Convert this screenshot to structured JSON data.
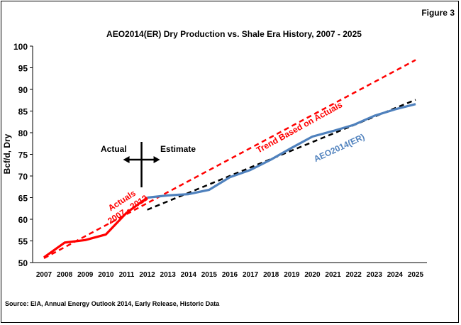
{
  "figure_label": "Figure 3",
  "source": "Source:  EIA, Annual Energy Outlook 2014, Early Release,  Historic Data",
  "chart_data": {
    "type": "line",
    "title": "AEO2014(ER) Dry Production vs.  Shale Era History, 2007 - 2025",
    "ylabel": "Bcf/d, Dry",
    "xlabel": "",
    "ylim": [
      50,
      100
    ],
    "yticks": [
      50,
      55,
      60,
      65,
      70,
      75,
      80,
      85,
      90,
      95,
      100
    ],
    "xticks": [
      2007,
      2008,
      2009,
      2010,
      2011,
      2012,
      2013,
      2014,
      2015,
      2016,
      2017,
      2018,
      2019,
      2020,
      2021,
      2022,
      2023,
      2024,
      2025
    ],
    "grid": false,
    "series": [
      {
        "name": "",
        "color": "#ff0000",
        "style": "solid",
        "x": [
          2007,
          2008,
          2009,
          2010,
          2011,
          2012
        ],
        "values": [
          51.2,
          54.6,
          55.2,
          56.5,
          61.5,
          65.0
        ]
      },
      {
        "name": "",
        "color": "#4f81bd",
        "style": "solid",
        "x": [
          2012,
          2013,
          2014,
          2015,
          2016,
          2017,
          2018,
          2019,
          2020,
          2021,
          2022,
          2023,
          2024,
          2025
        ],
        "values": [
          65.0,
          65.5,
          65.8,
          66.8,
          69.7,
          71.4,
          73.8,
          76.5,
          79.1,
          80.4,
          81.8,
          83.9,
          85.4,
          86.6
        ]
      },
      {
        "name": "",
        "color": "#ff0000",
        "style": "dashed",
        "x": [
          2007,
          2025
        ],
        "values": [
          51.0,
          96.8
        ]
      },
      {
        "name": "",
        "color": "#000000",
        "style": "dashed",
        "x": [
          2012,
          2025
        ],
        "values": [
          62.2,
          87.6
        ]
      }
    ],
    "annotations": {
      "actual": "Actual",
      "estimate": "Estimate",
      "actuals_period": "Actuals\n2007 - 2012",
      "trend_label": "Trend Based on Actuals",
      "aeo_label": "AEO2014(ER)"
    },
    "divider_year": 2012
  }
}
